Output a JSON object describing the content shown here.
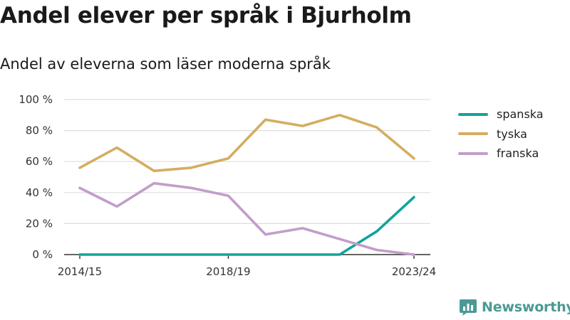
{
  "header": {
    "title": "Andel elever per språk i Bjurholm",
    "subtitle": "Andel av eleverna som läser moderna språk"
  },
  "brand": {
    "name": "Newsworthy",
    "icon": "bar-chart-logo-icon",
    "color": "#4a9994"
  },
  "chart_data": {
    "type": "line",
    "title": "Andel elever per språk i Bjurholm",
    "subtitle": "Andel av eleverna som läser moderna språk",
    "x": [
      "2014/15",
      "2015/16",
      "2016/17",
      "2017/18",
      "2018/19",
      "2019/20",
      "2020/21",
      "2021/22",
      "2022/23",
      "2023/24"
    ],
    "x_tick_labels": [
      "2014/15",
      "2018/19",
      "2023/24"
    ],
    "y_ticks": [
      0,
      20,
      40,
      60,
      80,
      100
    ],
    "y_tick_labels": [
      "0 %",
      "20 %",
      "40 %",
      "60 %",
      "80 %",
      "100 %"
    ],
    "ylim": [
      0,
      100
    ],
    "grid": true,
    "legend_position": "right",
    "series": [
      {
        "name": "spanska",
        "color": "#12a39a",
        "values": [
          0,
          0,
          0,
          0,
          0,
          0,
          0,
          0,
          15,
          37
        ]
      },
      {
        "name": "tyska",
        "color": "#d4ad61",
        "values": [
          56,
          69,
          54,
          56,
          62,
          87,
          83,
          90,
          82,
          62
        ]
      },
      {
        "name": "franska",
        "color": "#c29dcb",
        "values": [
          43,
          31,
          46,
          43,
          38,
          13,
          17,
          10,
          3,
          0
        ]
      }
    ]
  }
}
